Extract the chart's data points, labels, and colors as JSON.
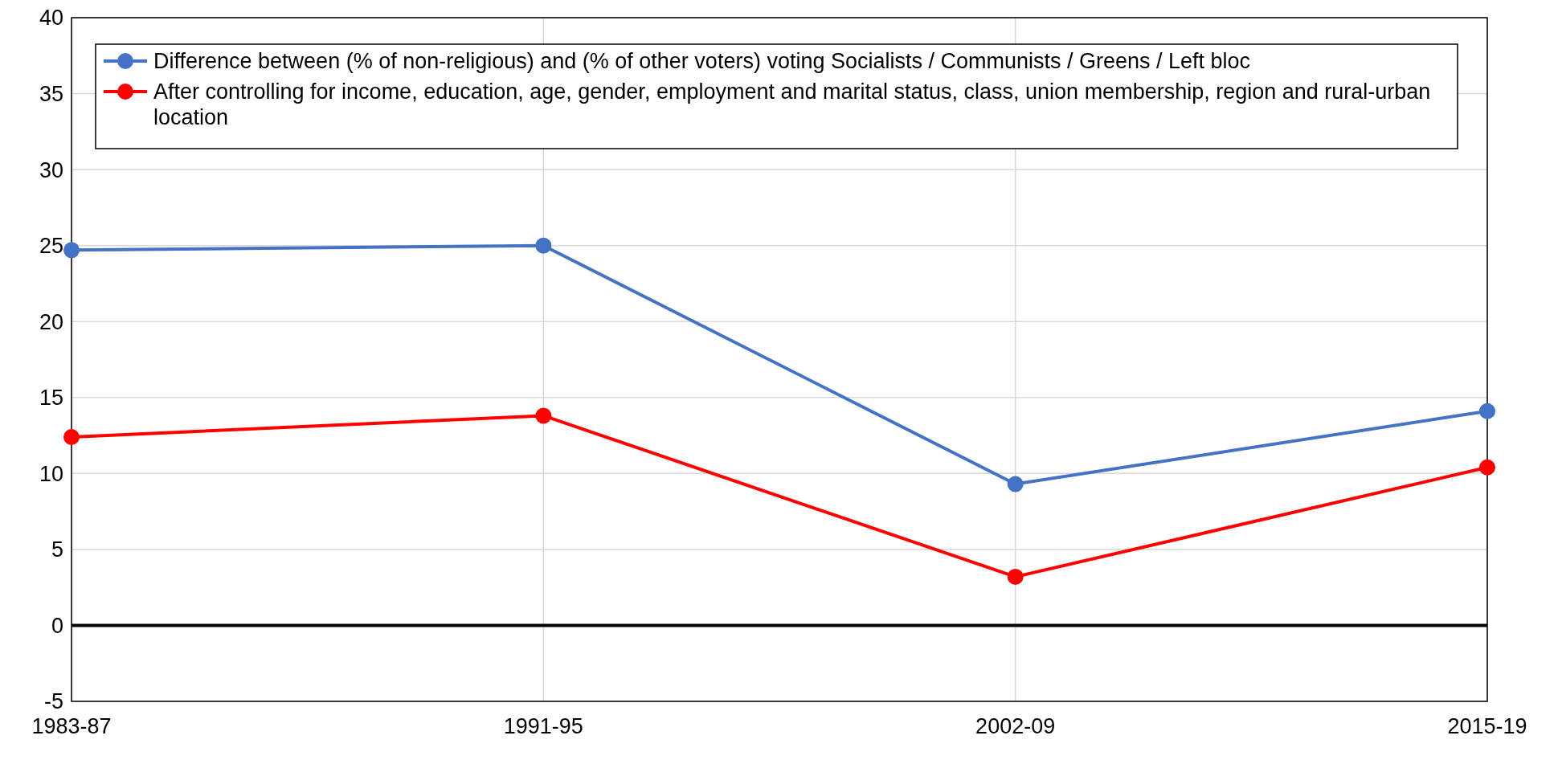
{
  "chart_data": {
    "type": "line",
    "categories": [
      "1983-87",
      "1991-95",
      "2002-09",
      "2015-19"
    ],
    "series": [
      {
        "name": "Difference between (% of non-religious) and (% of other voters) voting Socialists / Communists / Greens / Left bloc",
        "color": "#4472c4",
        "values": [
          24.7,
          25.0,
          9.3,
          14.1
        ]
      },
      {
        "name": "After controlling for income, education, age, gender, employment and marital status, class, union membership, region and rural-urban location",
        "color": "#ff0000",
        "values": [
          12.4,
          13.8,
          3.2,
          10.4
        ]
      }
    ],
    "ylim": [
      -5,
      40
    ],
    "yticks": [
      -5,
      0,
      5,
      10,
      15,
      20,
      25,
      30,
      35,
      40
    ],
    "grid": true,
    "legend": "top",
    "marker": "circle",
    "line_style": "solid",
    "ref_lines": [
      {
        "axis": "y",
        "value": 0,
        "color": "#000000"
      }
    ]
  }
}
